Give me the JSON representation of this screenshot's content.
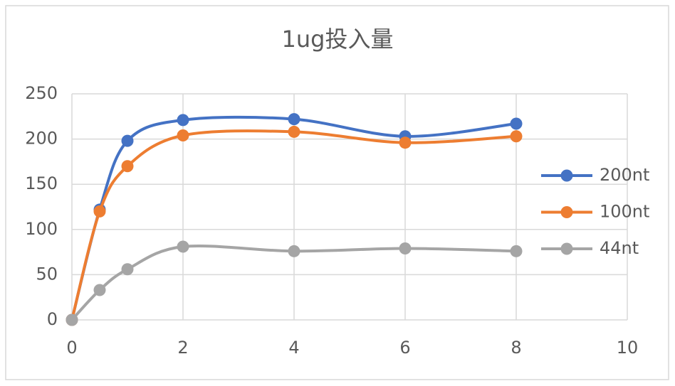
{
  "chart_data": {
    "type": "line",
    "smooth": true,
    "title": "1ug投入量",
    "x": [
      0,
      0.5,
      1,
      2,
      4,
      6,
      8
    ],
    "series": [
      {
        "name": "200nt",
        "color": "#4472c4",
        "values": [
          0,
          122,
          198,
          221,
          222,
          203,
          217
        ]
      },
      {
        "name": "100nt",
        "color": "#ed7d31",
        "values": [
          0,
          120,
          170,
          204,
          208,
          196,
          203
        ]
      },
      {
        "name": "44nt",
        "color": "#a5a5a5",
        "values": [
          0,
          33,
          56,
          81,
          76,
          79,
          76
        ]
      }
    ],
    "xlim": [
      0,
      10
    ],
    "xticks": [
      0,
      2,
      4,
      6,
      8,
      10
    ],
    "ylim": [
      0,
      250
    ],
    "yticks": [
      0,
      50,
      100,
      150,
      200,
      250
    ],
    "grid": true,
    "legend": "right"
  }
}
